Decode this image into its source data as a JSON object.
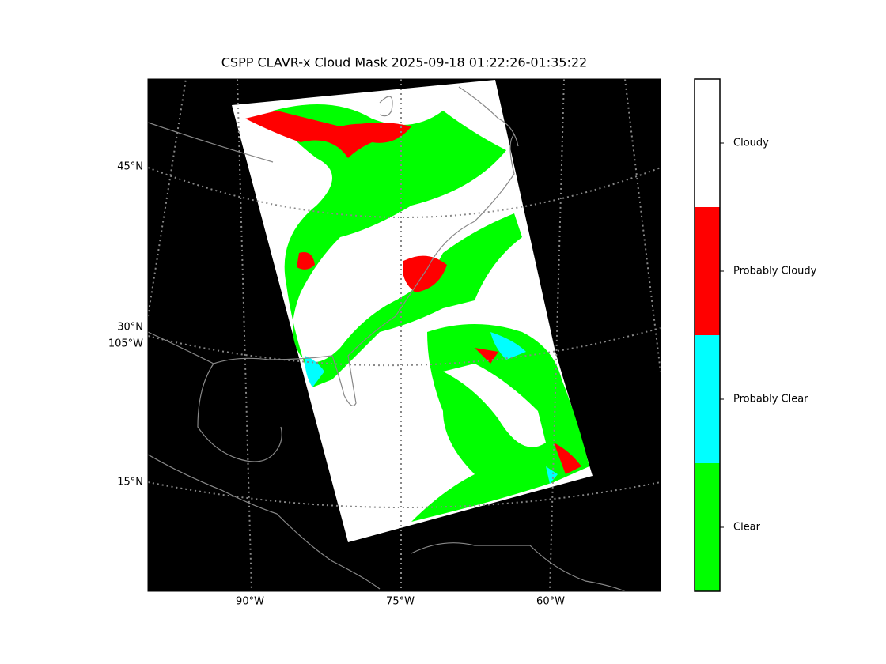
{
  "title": "CSPP CLAVR-x Cloud Mask 2025-09-18 01:22:26-01:35:22",
  "map": {
    "lat_labels": [
      "45°N",
      "30°N",
      "15°N"
    ],
    "extra_lon_label": "105°W",
    "lon_labels": [
      "90°W",
      "75°W",
      "60°W"
    ]
  },
  "colorbar": {
    "classes": [
      {
        "label": "Clear",
        "color": "#00ff00"
      },
      {
        "label": "Probably Clear",
        "color": "#00ffff"
      },
      {
        "label": "Probably Cloudy",
        "color": "#ff0000"
      },
      {
        "label": "Cloudy",
        "color": "#ffffff"
      }
    ]
  }
}
